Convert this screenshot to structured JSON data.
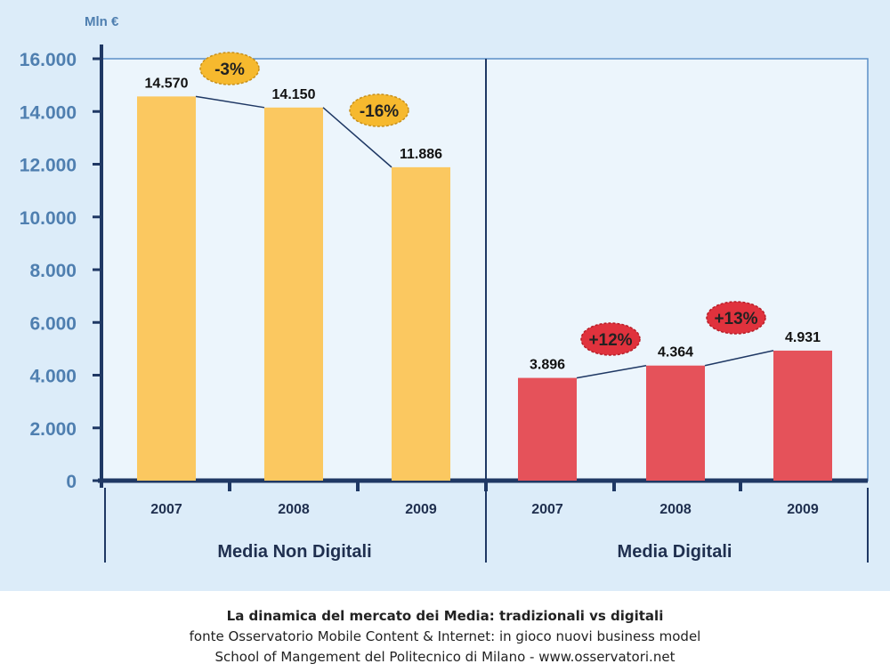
{
  "chart_data": {
    "type": "bar",
    "unit_label": "Mln €",
    "ylim": [
      0,
      16000
    ],
    "y_ticks": [
      {
        "value": 0,
        "label": "0"
      },
      {
        "value": 2000,
        "label": "2.000"
      },
      {
        "value": 4000,
        "label": "4.000"
      },
      {
        "value": 6000,
        "label": "6.000"
      },
      {
        "value": 8000,
        "label": "8.000"
      },
      {
        "value": 10000,
        "label": "10.000"
      },
      {
        "value": 12000,
        "label": "12.000"
      },
      {
        "value": 14000,
        "label": "14.000"
      },
      {
        "value": 16000,
        "label": "16.000"
      }
    ],
    "groups": [
      {
        "name": "Media Non Digitali",
        "color": "#fbc860",
        "categories": [
          "2007",
          "2008",
          "2009"
        ],
        "values": [
          14570,
          14150,
          11886
        ],
        "value_labels": [
          "14.570",
          "14.150",
          "11.886"
        ],
        "changes": [
          {
            "label": "-3%",
            "style": "orange"
          },
          {
            "label": "-16%",
            "style": "orange"
          }
        ]
      },
      {
        "name": "Media Digitali",
        "color": "#e5525a",
        "categories": [
          "2007",
          "2008",
          "2009"
        ],
        "values": [
          3896,
          4364,
          4931
        ],
        "value_labels": [
          "3.896",
          "4.364",
          "4.931"
        ],
        "changes": [
          {
            "label": "+12%",
            "style": "red"
          },
          {
            "label": "+13%",
            "style": "red"
          }
        ]
      }
    ],
    "colors": {
      "axis": "#1f3864",
      "tick_text": "#4f7fb0",
      "plot_bg": "#ecf5fc",
      "frame": "#5b8fc7",
      "trend_line": "#1f3864",
      "badge_orange": "#f6b92e",
      "badge_red": "#e0323d"
    }
  },
  "caption": {
    "title": "La dinamica del mercato dei Media: tradizionali vs digitali",
    "source": "fonte Osservatorio Mobile Content & Internet: in gioco nuovi business model",
    "school": "School of Mangement del Politecnico di Milano - www.osservatori.net"
  }
}
